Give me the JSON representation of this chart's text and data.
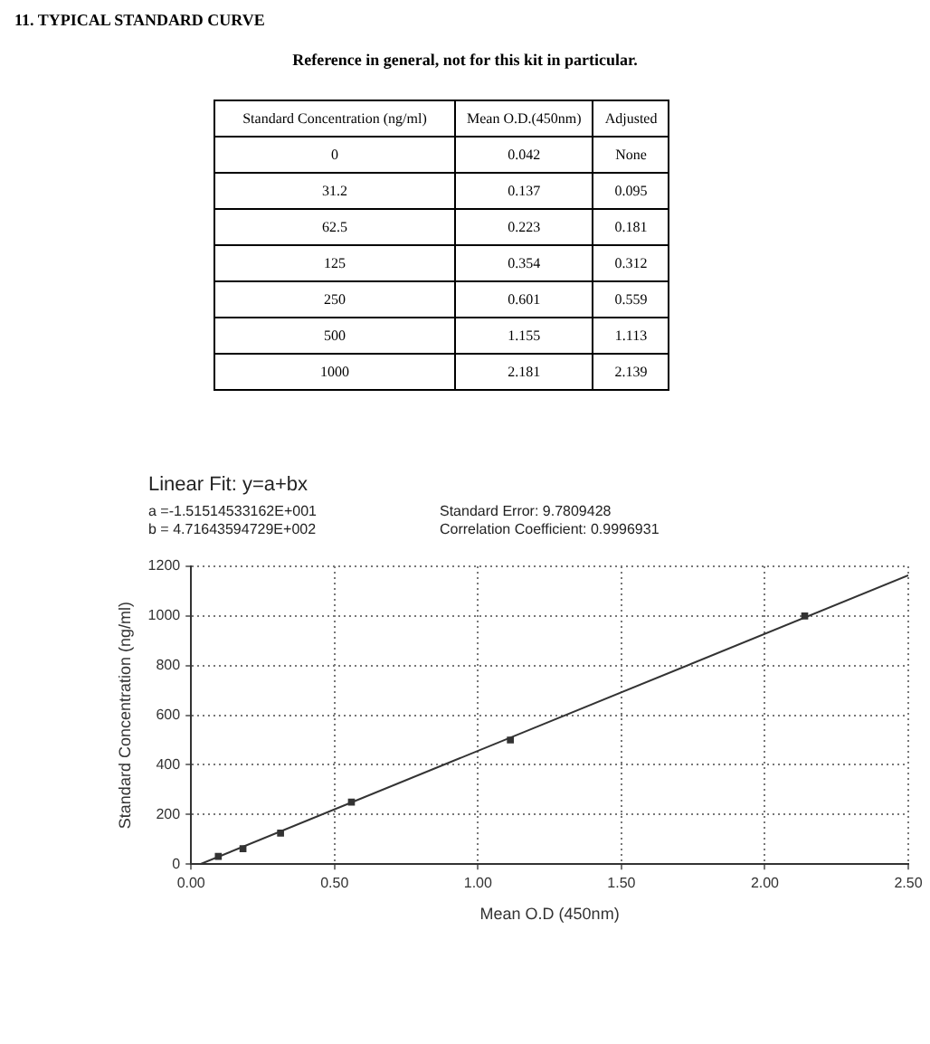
{
  "chart_data": {
    "type": "scatter",
    "title": "11. TYPICAL STANDARD CURVE",
    "subtitle": "Reference in general, not for this kit in particular.",
    "xlabel": "Mean O.D (450nm)",
    "ylabel": "Standard Concentration (ng/ml)",
    "series": [
      {
        "color": "#333333",
        "x": [
          0.095,
          0.181,
          0.312,
          0.559,
          1.113,
          2.139
        ],
        "values": [
          31.2,
          62.5,
          125,
          250,
          500,
          1000
        ]
      },
      {
        "type": "line",
        "color": "#333333",
        "marker": "none",
        "x": [
          0.032,
          2.5
        ],
        "values": [
          0,
          1164
        ]
      }
    ],
    "xlim": [
      0,
      2.5
    ],
    "ylim": [
      0,
      1200
    ],
    "xticks": [
      {
        "value": 0,
        "label": "0.00"
      },
      {
        "value": 0.5,
        "label": "0.50"
      },
      {
        "value": 1,
        "label": "1.00"
      },
      {
        "value": 1.5,
        "label": "1.50"
      },
      {
        "value": 2,
        "label": "2.00"
      },
      {
        "value": 2.5,
        "label": "2.50"
      }
    ],
    "yticks": [
      0,
      200,
      400,
      600,
      800,
      1000,
      1200
    ],
    "grid": true,
    "marker": "square",
    "legend": false,
    "annotations": [
      "Standard Concentration (ng/ml)",
      "Mean O.D.(450nm)",
      "Adjusted",
      "0",
      "0.042",
      "None",
      "31.2",
      "0.137",
      "0.095",
      "62.5",
      "0.223",
      "0.181",
      "125",
      "0.354",
      "0.312",
      "250",
      "0.601",
      "0.559",
      "500",
      "1.155",
      "1.113",
      "1000",
      "2.181",
      "2.139",
      "Linear Fit: y=a+bx",
      "a =-1.51514533162E+001",
      "b = 4.71643594729E+002",
      "Standard Error: 9.7809428",
      "Correlation Coefficient: 0.9996931"
    ]
  }
}
